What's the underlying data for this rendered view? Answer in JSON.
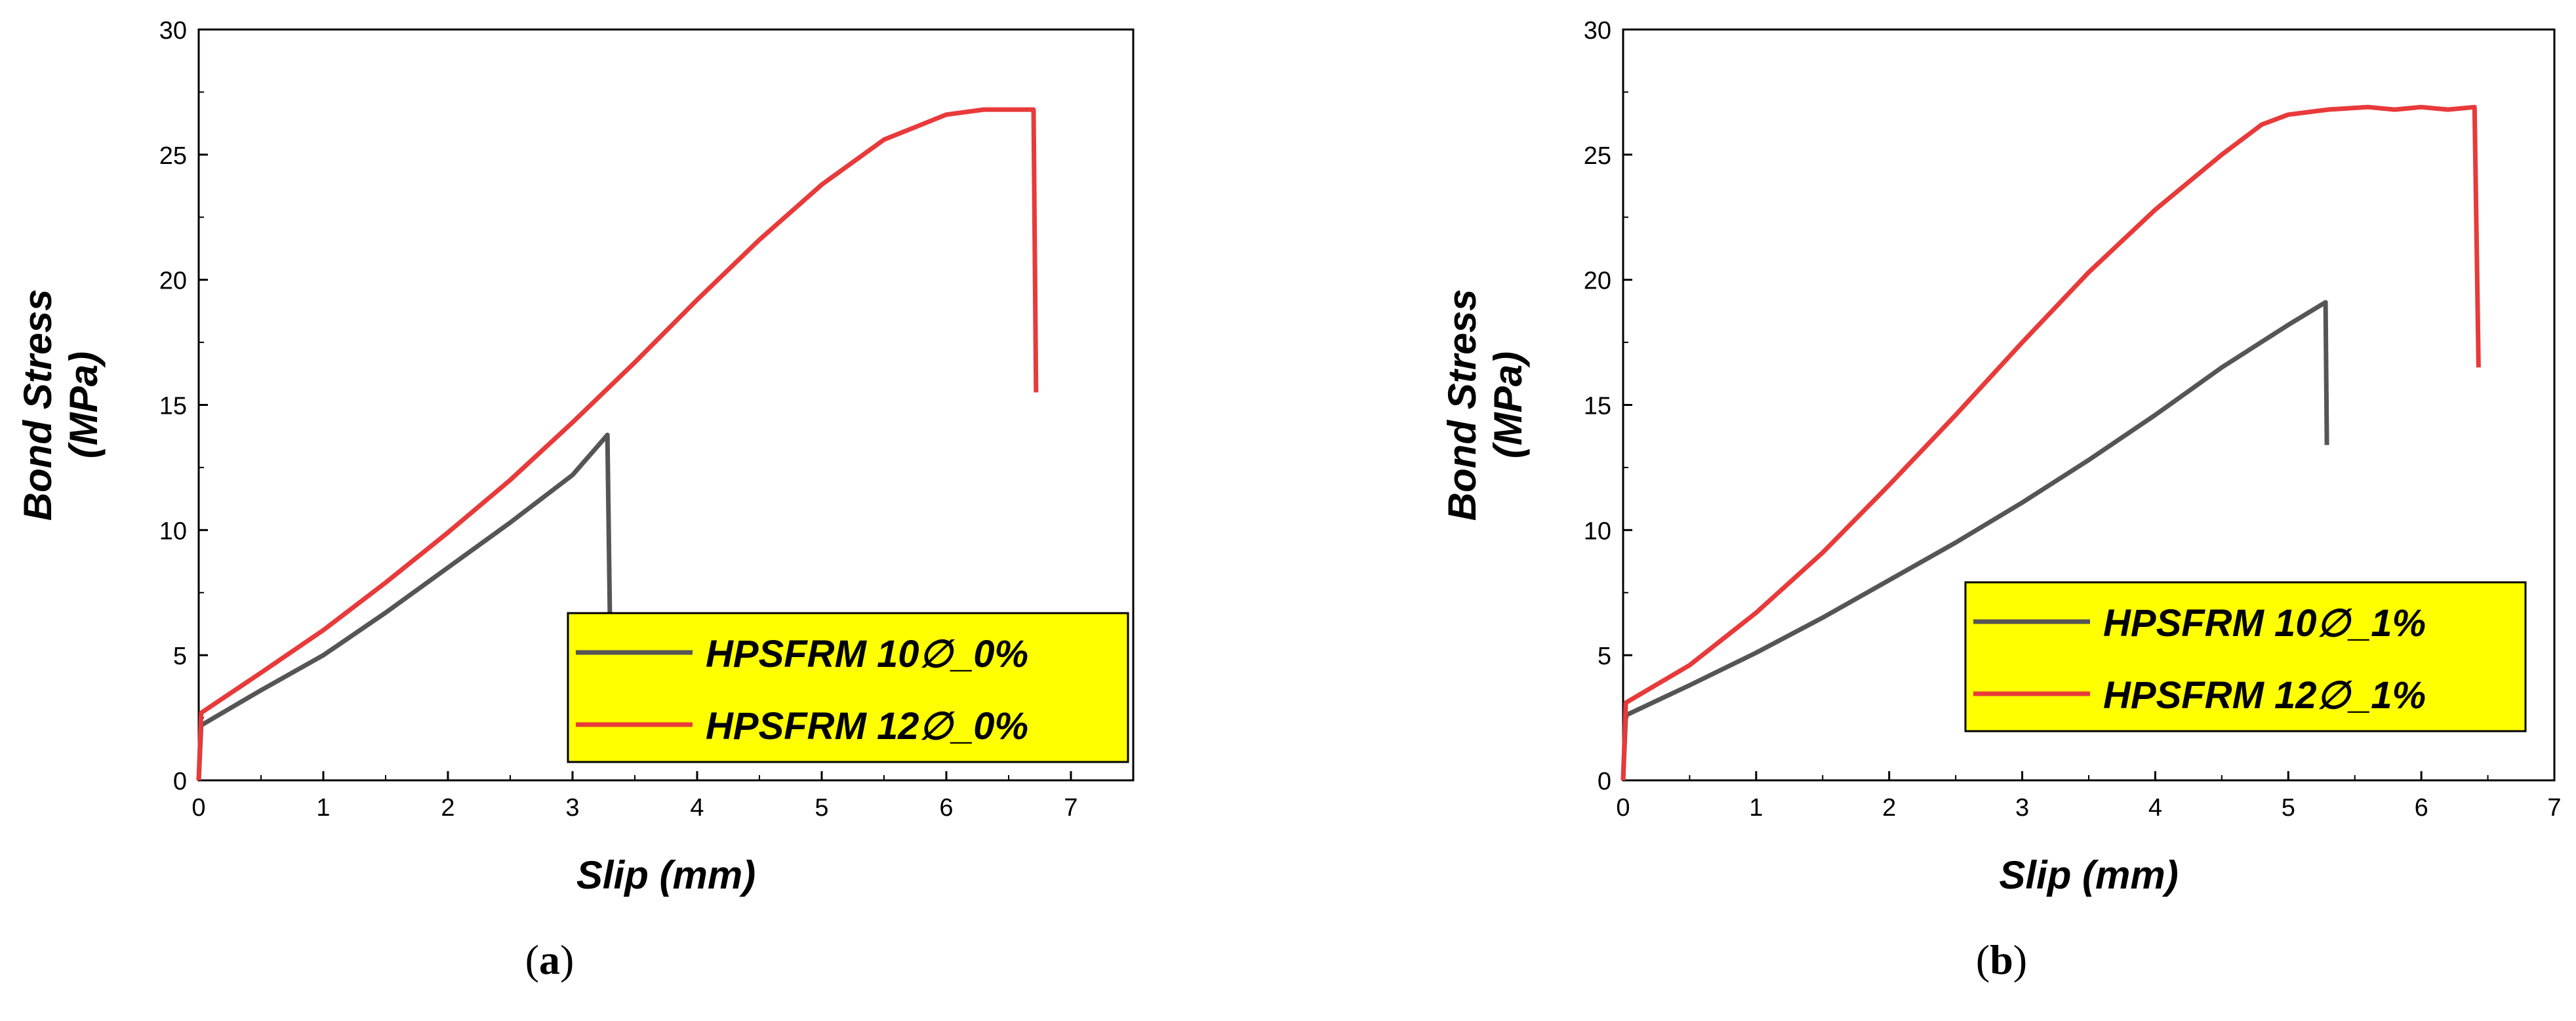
{
  "chart_data": [
    {
      "type": "line",
      "panel_label": "a",
      "xlabel": "Slip (mm)",
      "ylabel_line1": "Bond Stress",
      "ylabel_line2": "(MPa)",
      "xlim": [
        0,
        7.5
      ],
      "ylim": [
        0,
        30
      ],
      "xticks": [
        "0",
        "1",
        "2",
        "3",
        "4",
        "5",
        "6",
        "7"
      ],
      "yticks": [
        "0",
        "5",
        "10",
        "15",
        "20",
        "25",
        "30"
      ],
      "legend_position": "bottom-right",
      "legend_background": "#ffff00",
      "series": [
        {
          "name": "HPSFRM 10∅_0%",
          "color": "#555555",
          "points": [
            [
              0,
              0
            ],
            [
              0.02,
              2.2
            ],
            [
              0.5,
              3.6
            ],
            [
              1,
              5.0
            ],
            [
              1.5,
              6.7
            ],
            [
              2,
              8.5
            ],
            [
              2.5,
              10.3
            ],
            [
              3,
              12.2
            ],
            [
              3.28,
              13.8
            ],
            [
              3.3,
              6.5
            ]
          ]
        },
        {
          "name": "HPSFRM 12∅_0%",
          "color": "#e83a3a",
          "points": [
            [
              0,
              0
            ],
            [
              0.02,
              2.7
            ],
            [
              0.5,
              4.3
            ],
            [
              1,
              6.0
            ],
            [
              1.5,
              7.9
            ],
            [
              2,
              9.9
            ],
            [
              2.5,
              12.0
            ],
            [
              3,
              14.3
            ],
            [
              3.5,
              16.7
            ],
            [
              4,
              19.2
            ],
            [
              4.5,
              21.6
            ],
            [
              5,
              23.8
            ],
            [
              5.5,
              25.6
            ],
            [
              6,
              26.6
            ],
            [
              6.3,
              26.8
            ],
            [
              6.7,
              26.8
            ],
            [
              6.72,
              15.5
            ]
          ]
        }
      ]
    },
    {
      "type": "line",
      "panel_label": "b",
      "xlabel": "Slip (mm)",
      "ylabel_line1": "Bond Stress",
      "ylabel_line2": "(MPa)",
      "xlim": [
        0,
        7
      ],
      "ylim": [
        0,
        30
      ],
      "xticks": [
        "0",
        "1",
        "2",
        "3",
        "4",
        "5",
        "6",
        "7"
      ],
      "yticks": [
        "0",
        "5",
        "10",
        "15",
        "20",
        "25",
        "30"
      ],
      "legend_position": "right",
      "legend_background": "#ffff00",
      "series": [
        {
          "name": "HPSFRM 10∅_1%",
          "color": "#555555",
          "points": [
            [
              0,
              0
            ],
            [
              0.02,
              2.6
            ],
            [
              0.5,
              3.8
            ],
            [
              1,
              5.1
            ],
            [
              1.5,
              6.5
            ],
            [
              2,
              8.0
            ],
            [
              2.5,
              9.5
            ],
            [
              3,
              11.1
            ],
            [
              3.5,
              12.8
            ],
            [
              4,
              14.6
            ],
            [
              4.5,
              16.5
            ],
            [
              5,
              18.2
            ],
            [
              5.28,
              19.1
            ],
            [
              5.29,
              13.4
            ]
          ]
        },
        {
          "name": "HPSFRM 12∅_1%",
          "color": "#e83a3a",
          "points": [
            [
              0,
              0
            ],
            [
              0.02,
              3.1
            ],
            [
              0.5,
              4.6
            ],
            [
              1,
              6.7
            ],
            [
              1.5,
              9.1
            ],
            [
              2,
              11.8
            ],
            [
              2.5,
              14.6
            ],
            [
              3,
              17.5
            ],
            [
              3.5,
              20.3
            ],
            [
              4,
              22.8
            ],
            [
              4.5,
              25.0
            ],
            [
              4.8,
              26.2
            ],
            [
              5,
              26.6
            ],
            [
              5.3,
              26.8
            ],
            [
              5.6,
              26.9
            ],
            [
              5.8,
              26.8
            ],
            [
              6,
              26.9
            ],
            [
              6.2,
              26.8
            ],
            [
              6.4,
              26.9
            ],
            [
              6.43,
              16.5
            ]
          ]
        }
      ]
    }
  ]
}
